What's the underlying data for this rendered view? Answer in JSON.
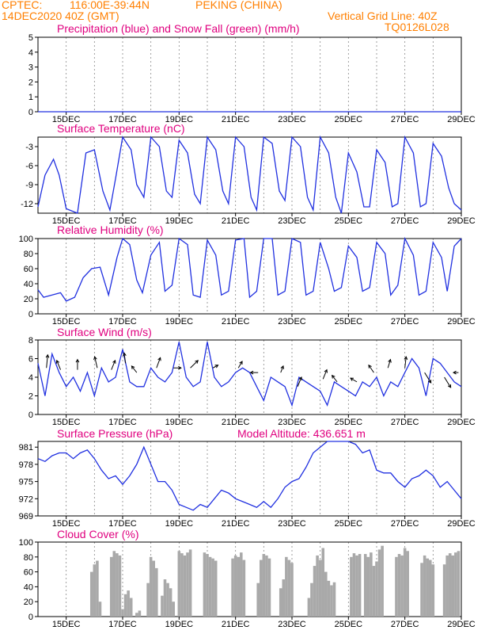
{
  "header": {
    "source": "CPTEC:",
    "coords": "116:00E-39:44N",
    "station": "PEKING (CHINA)",
    "run": "14DEC2020 40Z (GMT)",
    "vgrid": "Vertical Grid Line: 40Z",
    "code": "TQ0126L028"
  },
  "colors": {
    "header": "#ff7f00",
    "title": "#e0007f",
    "series": "#2030e0",
    "cloud": "#a9a9a9",
    "arrow": "#000000"
  },
  "chart_data": [
    {
      "type": "line",
      "title": "Precipitation (blue) and Snow Fall (green) (mm/h)",
      "ylim": [
        0,
        5
      ],
      "yticks": [
        "0",
        "1",
        "2",
        "3",
        "4",
        "5"
      ],
      "xticks": [
        "15DEC",
        "17DEC",
        "19DEC",
        "21DEC",
        "23DEC",
        "25DEC",
        "27DEC",
        "29DEC"
      ],
      "series": [
        {
          "x": [
            0,
            15
          ],
          "y": [
            0,
            0
          ]
        }
      ]
    },
    {
      "type": "line",
      "title": "Surface Temperature (nC)",
      "ylim": [
        -13.5,
        -1.5
      ],
      "yticks": [
        "-12",
        "-9",
        "-6",
        "-3"
      ],
      "xticks": [
        "15DEC",
        "17DEC",
        "19DEC",
        "21DEC",
        "23DEC",
        "25DEC",
        "27DEC",
        "29DEC"
      ],
      "series": [
        {
          "x": [
            0,
            0.25,
            0.55,
            0.75,
            1.0,
            1.4,
            1.7,
            2.0,
            2.3,
            2.55,
            2.75,
            3.0,
            3.3,
            3.5,
            3.75,
            4.0,
            4.3,
            4.55,
            4.75,
            5.0,
            5.3,
            5.55,
            5.75,
            6.0,
            6.3,
            6.55,
            6.75,
            7.0,
            7.3,
            7.55,
            7.75,
            8.0,
            8.3,
            8.55,
            8.75,
            9.0,
            9.3,
            9.55,
            9.75,
            10.0,
            10.3,
            10.55,
            10.75,
            11.0,
            11.3,
            11.55,
            11.75,
            12.0,
            12.3,
            12.55,
            12.75,
            13.0,
            13.3,
            13.55,
            13.75,
            14.0,
            14.3,
            14.55,
            14.75,
            15.0
          ],
          "y": [
            -12.5,
            -7.5,
            -5.0,
            -7.5,
            -12.8,
            -13.5,
            -4.0,
            -3.5,
            -10.0,
            -13.0,
            -8.0,
            -1.5,
            -3.5,
            -9.0,
            -11.0,
            -1.5,
            -3.0,
            -10.0,
            -11.0,
            -2.0,
            -4.0,
            -10.5,
            -12.0,
            -1.5,
            -3.5,
            -10.0,
            -12.0,
            -1.5,
            -3.0,
            -11.0,
            -13.0,
            -1.5,
            -2.5,
            -10.0,
            -11.5,
            -1.5,
            -3.0,
            -11.0,
            -13.0,
            -1.5,
            -4.0,
            -11.0,
            -13.5,
            -4.0,
            -7.0,
            -12.5,
            -12.5,
            -3.5,
            -5.5,
            -12.5,
            -12.0,
            -1.5,
            -4.0,
            -12.5,
            -12.0,
            -2.5,
            -4.5,
            -9.5,
            -12.0,
            -13.0
          ]
        }
      ]
    },
    {
      "type": "line",
      "title": "Relative Humidity (%)",
      "ylim": [
        0,
        100
      ],
      "yticks": [
        "0",
        "20",
        "40",
        "60",
        "80",
        "100"
      ],
      "xticks": [
        "15DEC",
        "17DEC",
        "19DEC",
        "21DEC",
        "23DEC",
        "25DEC",
        "27DEC",
        "29DEC"
      ],
      "series": [
        {
          "x": [
            0,
            0.2,
            0.5,
            0.8,
            1.0,
            1.3,
            1.6,
            1.9,
            2.2,
            2.5,
            2.8,
            3.0,
            3.25,
            3.5,
            3.7,
            4.0,
            4.3,
            4.5,
            4.75,
            5.0,
            5.3,
            5.5,
            5.75,
            6.0,
            6.3,
            6.5,
            6.75,
            7.0,
            7.3,
            7.5,
            7.75,
            8.0,
            8.3,
            8.5,
            8.75,
            9.0,
            9.3,
            9.5,
            9.75,
            10.0,
            10.3,
            10.5,
            10.75,
            11.0,
            11.3,
            11.5,
            11.75,
            12.0,
            12.3,
            12.5,
            12.75,
            13.0,
            13.3,
            13.5,
            13.75,
            14.0,
            14.3,
            14.5,
            14.75,
            15.0
          ],
          "y": [
            32,
            22,
            25,
            28,
            17,
            22,
            48,
            60,
            62,
            25,
            75,
            100,
            92,
            45,
            28,
            78,
            95,
            30,
            38,
            100,
            92,
            25,
            22,
            98,
            78,
            25,
            30,
            98,
            100,
            22,
            30,
            100,
            100,
            25,
            30,
            100,
            95,
            25,
            30,
            95,
            60,
            30,
            35,
            90,
            75,
            30,
            35,
            95,
            80,
            25,
            38,
            100,
            78,
            25,
            30,
            95,
            75,
            30,
            90,
            100
          ]
        }
      ]
    },
    {
      "type": "line",
      "title": "Surface Wind (m/s)",
      "ylim": [
        0,
        8
      ],
      "yticks": [
        "0",
        "2",
        "4",
        "6",
        "8"
      ],
      "xticks": [
        "15DEC",
        "17DEC",
        "19DEC",
        "21DEC",
        "23DEC",
        "25DEC",
        "27DEC",
        "29DEC"
      ],
      "series": [
        {
          "x": [
            0,
            0.25,
            0.5,
            0.75,
            1.0,
            1.25,
            1.5,
            1.75,
            2.0,
            2.25,
            2.5,
            2.75,
            3.0,
            3.25,
            3.5,
            3.75,
            4.0,
            4.25,
            4.5,
            4.75,
            5.0,
            5.25,
            5.5,
            5.75,
            6.0,
            6.25,
            6.5,
            6.75,
            7.0,
            7.25,
            7.5,
            7.75,
            8.0,
            8.25,
            8.5,
            8.75,
            9.0,
            9.25,
            9.5,
            9.75,
            10.0,
            10.25,
            10.5,
            10.75,
            11.0,
            11.25,
            11.5,
            11.75,
            12.0,
            12.25,
            12.5,
            12.75,
            13.0,
            13.25,
            13.5,
            13.75,
            14.0,
            14.25,
            14.5,
            14.75,
            15.0
          ],
          "y": [
            5.5,
            2.0,
            6.5,
            4.5,
            3.0,
            4.0,
            2.5,
            4.5,
            2.0,
            5.0,
            3.5,
            4.0,
            7.0,
            3.5,
            3.0,
            3.0,
            5.0,
            4.0,
            3.5,
            4.5,
            7.8,
            4.0,
            3.0,
            3.5,
            7.8,
            4.0,
            3.0,
            3.5,
            4.5,
            5.0,
            4.5,
            3.0,
            1.5,
            4.0,
            3.5,
            3.0,
            1.0,
            4.0,
            3.5,
            3.0,
            2.5,
            1.0,
            3.5,
            3.0,
            2.5,
            2.0,
            3.5,
            3.0,
            4.0,
            2.0,
            3.5,
            3.0,
            4.5,
            6.0,
            5.0,
            2.0,
            6.0,
            5.5,
            4.5,
            3.5,
            3.0
          ]
        }
      ],
      "arrows": [
        {
          "x": 0.3,
          "y": 5.0,
          "dx": 0.1,
          "dy": 1.4
        },
        {
          "x": 0.8,
          "y": 4.8,
          "dx": -0.3,
          "dy": 1.0
        },
        {
          "x": 1.4,
          "y": 4.8,
          "dx": 0.0,
          "dy": 1.1
        },
        {
          "x": 2.1,
          "y": 5.0,
          "dx": -0.2,
          "dy": 1.2
        },
        {
          "x": 2.6,
          "y": 4.8,
          "dx": 0.3,
          "dy": 1.0
        },
        {
          "x": 3.1,
          "y": 5.5,
          "dx": -0.1,
          "dy": 1.1
        },
        {
          "x": 3.5,
          "y": 4.5,
          "dx": -0.4,
          "dy": 0.7
        },
        {
          "x": 4.2,
          "y": 5.0,
          "dx": 0.3,
          "dy": 1.1
        },
        {
          "x": 4.8,
          "y": 5.0,
          "dx": 0.6,
          "dy": 0.0
        },
        {
          "x": 5.4,
          "y": 5.0,
          "dx": 0.6,
          "dy": 0.8
        },
        {
          "x": 6.2,
          "y": 5.0,
          "dx": 0.4,
          "dy": 0.3
        },
        {
          "x": 7.1,
          "y": 5.0,
          "dx": 0.3,
          "dy": 0.7
        },
        {
          "x": 7.8,
          "y": 4.5,
          "dx": -0.6,
          "dy": 0.0
        },
        {
          "x": 8.6,
          "y": 4.5,
          "dx": 0.2,
          "dy": 0.7
        },
        {
          "x": 9.2,
          "y": 3.0,
          "dx": 0.3,
          "dy": 1.0
        },
        {
          "x": 10.1,
          "y": 3.8,
          "dx": 0.3,
          "dy": 1.0
        },
        {
          "x": 10.6,
          "y": 3.5,
          "dx": -0.4,
          "dy": 0.7
        },
        {
          "x": 11.3,
          "y": 3.5,
          "dx": -0.5,
          "dy": 0.4
        },
        {
          "x": 11.9,
          "y": 4.5,
          "dx": -0.4,
          "dy": 0.8
        },
        {
          "x": 12.4,
          "y": 5.0,
          "dx": 0.2,
          "dy": 0.9
        },
        {
          "x": 13.0,
          "y": 5.0,
          "dx": 0.1,
          "dy": 1.2
        },
        {
          "x": 13.7,
          "y": 4.5,
          "dx": 0.5,
          "dy": -1.1
        },
        {
          "x": 14.4,
          "y": 4.0,
          "dx": 0.5,
          "dy": -1.1
        },
        {
          "x": 14.9,
          "y": 4.5,
          "dx": -0.4,
          "dy": 0.0
        }
      ]
    },
    {
      "type": "line",
      "title": "Surface Pressure (hPa)",
      "annotation": "Model Altitude: 436.651  m",
      "ylim": [
        969,
        982
      ],
      "yticks": [
        "969",
        "972",
        "975",
        "978",
        "981"
      ],
      "xticks": [
        "15DEC",
        "17DEC",
        "19DEC",
        "21DEC",
        "23DEC",
        "25DEC",
        "27DEC",
        "29DEC"
      ],
      "series": [
        {
          "x": [
            0,
            0.25,
            0.5,
            0.75,
            1.0,
            1.25,
            1.5,
            1.75,
            2.0,
            2.25,
            2.5,
            2.75,
            3.0,
            3.25,
            3.5,
            3.75,
            4.0,
            4.25,
            4.5,
            4.75,
            5.0,
            5.25,
            5.5,
            5.75,
            6.0,
            6.25,
            6.5,
            6.75,
            7.0,
            7.25,
            7.5,
            7.75,
            8.0,
            8.25,
            8.5,
            8.75,
            9.0,
            9.25,
            9.5,
            9.75,
            10.0,
            10.25,
            10.5,
            10.75,
            11.0,
            11.25,
            11.5,
            11.75,
            12.0,
            12.25,
            12.5,
            12.75,
            13.0,
            13.25,
            13.5,
            13.75,
            14.0,
            14.25,
            14.5,
            14.75,
            15.0
          ],
          "y": [
            979.0,
            978.5,
            979.5,
            980.0,
            980.0,
            979.0,
            980.0,
            980.5,
            979.0,
            977.0,
            975.5,
            976.0,
            974.5,
            976.0,
            978.0,
            981.0,
            978.0,
            975.0,
            975.0,
            973.5,
            971.0,
            970.5,
            970.0,
            971.0,
            970.5,
            972.0,
            973.5,
            973.0,
            972.0,
            971.5,
            971.0,
            970.5,
            971.5,
            970.5,
            972.0,
            974.0,
            975.0,
            975.5,
            977.5,
            980.0,
            981.0,
            983.0,
            982.0,
            983.0,
            982.0,
            981.5,
            980.0,
            980.5,
            977.0,
            976.5,
            976.5,
            975.0,
            974.0,
            975.5,
            976.0,
            977.0,
            976.0,
            974.0,
            975.0,
            973.5,
            972.0
          ]
        }
      ]
    },
    {
      "type": "bar",
      "title": "Cloud Cover (%)",
      "ylim": [
        0,
        100
      ],
      "yticks": [
        "0",
        "20",
        "40",
        "60",
        "80",
        "100"
      ],
      "xticks": [
        "15DEC",
        "17DEC",
        "19DEC",
        "21DEC",
        "23DEC",
        "25DEC",
        "27DEC",
        "29DEC"
      ],
      "x": [
        1.9,
        2.0,
        2.1,
        2.2,
        2.6,
        2.7,
        2.8,
        2.9,
        3.0,
        3.1,
        3.2,
        3.3,
        3.5,
        3.6,
        3.9,
        4.0,
        4.1,
        4.2,
        4.4,
        4.5,
        4.6,
        4.7,
        4.8,
        5.0,
        5.1,
        5.2,
        5.3,
        5.4,
        5.9,
        6.0,
        6.1,
        6.2,
        6.3,
        6.9,
        7.0,
        7.1,
        7.2,
        7.3,
        7.8,
        7.9,
        8.0,
        8.1,
        8.2,
        8.6,
        8.7,
        8.8,
        8.9,
        9.0,
        9.6,
        9.7,
        9.8,
        9.9,
        10.0,
        10.1,
        10.2,
        10.3,
        10.4,
        10.5,
        11.1,
        11.2,
        11.3,
        11.4,
        11.6,
        11.7,
        11.8,
        11.9,
        12.0,
        12.1,
        12.2,
        12.7,
        12.8,
        12.9,
        13.0,
        13.1,
        13.6,
        13.7,
        13.8,
        13.9,
        14.0,
        14.4,
        14.5,
        14.6,
        14.7,
        14.8,
        14.9
      ],
      "values": [
        60,
        70,
        75,
        20,
        80,
        88,
        85,
        82,
        10,
        30,
        35,
        25,
        5,
        8,
        45,
        80,
        75,
        65,
        28,
        50,
        45,
        38,
        20,
        88,
        85,
        82,
        86,
        90,
        86,
        84,
        80,
        78,
        75,
        78,
        82,
        80,
        86,
        76,
        45,
        76,
        84,
        82,
        78,
        38,
        50,
        80,
        76,
        72,
        25,
        45,
        68,
        82,
        76,
        92,
        60,
        48,
        42,
        46,
        80,
        85,
        82,
        84,
        84,
        80,
        86,
        68,
        74,
        90,
        95,
        80,
        84,
        82,
        92,
        88,
        72,
        82,
        78,
        76,
        70,
        70,
        82,
        85,
        82,
        86,
        88
      ]
    }
  ]
}
